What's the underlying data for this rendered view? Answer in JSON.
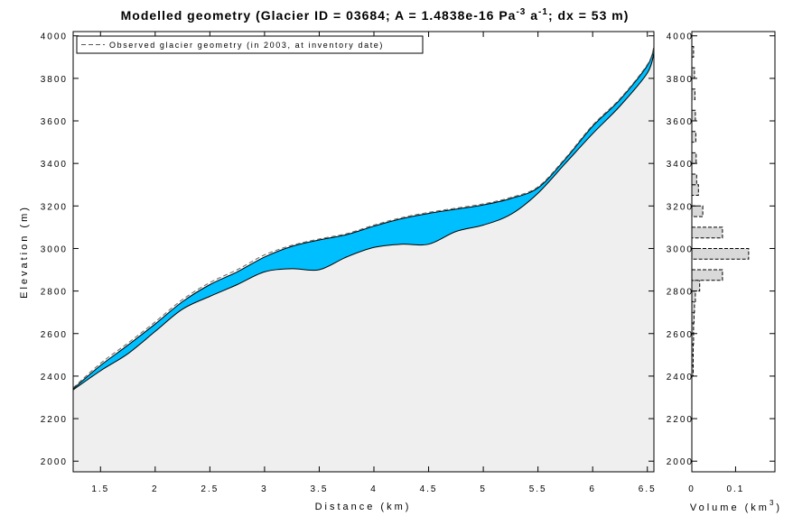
{
  "chart_data": [
    {
      "type": "area",
      "title_parts": {
        "pre": "Modelled geometry (Glacier ID = 03684; A = 1.4838e-16 Pa",
        "exp1": "-3",
        "mid": " a",
        "exp2": "-1",
        "post": "; dx = 53 m)"
      },
      "xlabel": "Distance (km)",
      "ylabel": "Elevation (m)",
      "xlim": [
        1.25,
        6.56
      ],
      "ylim": [
        1950,
        4020
      ],
      "xticks": [
        1.5,
        2,
        2.5,
        3,
        3.5,
        4,
        4.5,
        5,
        5.5,
        6,
        6.5
      ],
      "xtick_labels": [
        "1.5",
        "2",
        "2.5",
        "3",
        "3.5",
        "4",
        "4.5",
        "5",
        "5.5",
        "6",
        "6.5"
      ],
      "yticks": [
        2000,
        2200,
        2400,
        2600,
        2800,
        3000,
        3200,
        3400,
        3600,
        3800,
        4000
      ],
      "ytick_labels": [
        "2000",
        "2200",
        "2400",
        "2600",
        "2800",
        "3000",
        "3200",
        "3400",
        "3600",
        "3800",
        "4000"
      ],
      "legend": {
        "position": "top-left",
        "entries": [
          "Observed glacier geometry (in 2003, at inventory date)"
        ]
      },
      "series": [
        {
          "role": "bed",
          "x": [
            1.25,
            1.5,
            1.75,
            2.0,
            2.25,
            2.5,
            2.75,
            3.0,
            3.25,
            3.5,
            3.75,
            4.0,
            4.25,
            4.5,
            4.75,
            5.0,
            5.25,
            5.5,
            5.75,
            6.0,
            6.25,
            6.5,
            6.56
          ],
          "y": [
            2335,
            2425,
            2505,
            2610,
            2715,
            2775,
            2830,
            2890,
            2905,
            2900,
            2960,
            3005,
            3020,
            3020,
            3080,
            3110,
            3160,
            3260,
            3400,
            3540,
            3670,
            3825,
            3920
          ]
        },
        {
          "role": "modelled-surface",
          "x": [
            1.25,
            1.5,
            1.75,
            2.0,
            2.25,
            2.5,
            2.75,
            3.0,
            3.25,
            3.5,
            3.75,
            4.0,
            4.25,
            4.5,
            4.75,
            5.0,
            5.25,
            5.5,
            5.75,
            6.0,
            6.25,
            6.5,
            6.56
          ],
          "y": [
            2340,
            2450,
            2545,
            2645,
            2750,
            2830,
            2890,
            2960,
            3010,
            3040,
            3065,
            3105,
            3140,
            3165,
            3185,
            3205,
            3235,
            3285,
            3420,
            3575,
            3700,
            3860,
            3945
          ]
        },
        {
          "role": "observed-surface",
          "x": [
            1.25,
            1.5,
            1.75,
            2.0,
            2.25,
            2.5,
            2.75,
            3.0,
            3.25,
            3.5,
            3.75,
            4.0,
            4.25,
            4.5,
            4.75,
            5.0,
            5.25,
            5.5,
            5.75,
            6.0,
            6.25,
            6.5,
            6.56
          ],
          "y": [
            2345,
            2460,
            2555,
            2655,
            2760,
            2840,
            2900,
            2970,
            3015,
            3045,
            3070,
            3110,
            3145,
            3170,
            3190,
            3210,
            3240,
            3290,
            3425,
            3580,
            3705,
            3865,
            3950
          ]
        }
      ],
      "colors": {
        "ice": "#00bfff",
        "bed": "#efefef",
        "observed": "#666666",
        "line": "#000000"
      }
    },
    {
      "type": "bar",
      "orientation": "horizontal",
      "xlabel_parts": {
        "pre": "Volume (km",
        "exp": "3",
        "post": ")"
      },
      "xlim": [
        0,
        0.19
      ],
      "xticks": [
        0,
        0.1
      ],
      "xtick_labels": [
        "0",
        "0.1"
      ],
      "ylim": [
        1950,
        4020
      ],
      "yticks": [
        2000,
        2200,
        2400,
        2600,
        2800,
        3000,
        3200,
        3400,
        3600,
        3800,
        4000
      ],
      "ytick_labels": [
        "2000",
        "2200",
        "2400",
        "2600",
        "2800",
        "3000",
        "3200",
        "3400",
        "3600",
        "3800",
        "4000"
      ],
      "bin_width": 50,
      "bins": [
        {
          "y": 2400,
          "value": 0.003
        },
        {
          "y": 2450,
          "value": 0.003
        },
        {
          "y": 2500,
          "value": 0.003
        },
        {
          "y": 2550,
          "value": 0.004
        },
        {
          "y": 2600,
          "value": 0.004
        },
        {
          "y": 2650,
          "value": 0.005
        },
        {
          "y": 2700,
          "value": 0.006
        },
        {
          "y": 2750,
          "value": 0.008
        },
        {
          "y": 2800,
          "value": 0.018
        },
        {
          "y": 2850,
          "value": 0.07
        },
        {
          "y": 2950,
          "value": 0.13
        },
        {
          "y": 3050,
          "value": 0.07
        },
        {
          "y": 3150,
          "value": 0.025
        },
        {
          "y": 3250,
          "value": 0.015
        },
        {
          "y": 3300,
          "value": 0.011
        },
        {
          "y": 3400,
          "value": 0.01
        },
        {
          "y": 3500,
          "value": 0.009
        },
        {
          "y": 3600,
          "value": 0.008
        },
        {
          "y": 3700,
          "value": 0.007
        },
        {
          "y": 3800,
          "value": 0.006
        },
        {
          "y": 3900,
          "value": 0.004
        }
      ],
      "colors": {
        "bar": "#d9d9d9",
        "edge": "#000000"
      }
    }
  ]
}
